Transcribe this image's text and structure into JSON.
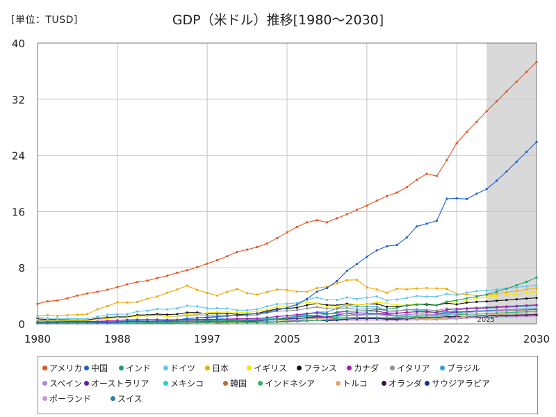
{
  "header": {
    "unit_label": "[単位：TUSD]",
    "title": "GDP（米ドル）推移[1980～2030]"
  },
  "chart_data": {
    "type": "line",
    "title": "GDP（米ドル）推移[1980～2030]",
    "unit": "[単位：TUSD]",
    "xlim": [
      1980,
      2030
    ],
    "ylim": [
      0,
      40
    ],
    "x_ticks": [
      1980,
      1988,
      1997,
      2005,
      2013,
      2022,
      2030
    ],
    "y_ticks": [
      0,
      8,
      16,
      24,
      32,
      40
    ],
    "grid": true,
    "forecast_start": 2025,
    "forecast_label": "2025",
    "legend_position": "bottom",
    "x": [
      1980,
      1981,
      1982,
      1983,
      1984,
      1985,
      1986,
      1987,
      1988,
      1989,
      1990,
      1991,
      1992,
      1993,
      1994,
      1995,
      1996,
      1997,
      1998,
      1999,
      2000,
      2001,
      2002,
      2003,
      2004,
      2005,
      2006,
      2007,
      2008,
      2009,
      2010,
      2011,
      2012,
      2013,
      2014,
      2015,
      2016,
      2017,
      2018,
      2019,
      2020,
      2021,
      2022,
      2023,
      2024,
      2025,
      2026,
      2027,
      2028,
      2029,
      2030
    ],
    "series": [
      {
        "name": "アメリカ",
        "color": "#e8521c",
        "values": [
          2.86,
          3.21,
          3.34,
          3.64,
          4.04,
          4.34,
          4.58,
          4.86,
          5.24,
          5.64,
          5.96,
          6.16,
          6.52,
          6.86,
          7.29,
          7.64,
          8.07,
          8.58,
          9.06,
          9.63,
          10.25,
          10.58,
          10.94,
          11.46,
          12.21,
          13.04,
          13.82,
          14.47,
          14.77,
          14.48,
          15.05,
          15.6,
          16.25,
          16.84,
          17.55,
          18.21,
          18.7,
          19.48,
          20.53,
          21.38,
          21.06,
          23.32,
          25.74,
          27.36,
          28.78,
          30.3,
          31.7,
          33.1,
          34.5,
          35.9,
          37.3
        ]
      },
      {
        "name": "中国",
        "color": "#1a5fd6",
        "values": [
          0.3,
          0.29,
          0.28,
          0.3,
          0.31,
          0.31,
          0.3,
          0.27,
          0.31,
          0.35,
          0.36,
          0.38,
          0.43,
          0.44,
          0.56,
          0.73,
          0.86,
          0.96,
          1.03,
          1.09,
          1.21,
          1.34,
          1.47,
          1.66,
          1.95,
          2.29,
          2.75,
          3.55,
          4.59,
          5.1,
          6.09,
          7.55,
          8.53,
          9.57,
          10.48,
          11.06,
          11.23,
          12.31,
          13.89,
          14.28,
          14.69,
          17.82,
          17.88,
          17.79,
          18.53,
          19.2,
          20.4,
          21.7,
          23.1,
          24.5,
          25.9
        ]
      },
      {
        "name": "インド",
        "color": "#1b9e6b",
        "values": [
          0.19,
          0.2,
          0.2,
          0.22,
          0.21,
          0.23,
          0.25,
          0.27,
          0.29,
          0.29,
          0.32,
          0.27,
          0.29,
          0.28,
          0.33,
          0.36,
          0.39,
          0.42,
          0.42,
          0.46,
          0.47,
          0.49,
          0.51,
          0.6,
          0.7,
          0.82,
          0.94,
          1.22,
          1.2,
          1.34,
          1.68,
          1.82,
          1.83,
          1.86,
          2.04,
          2.1,
          2.29,
          2.65,
          2.7,
          2.84,
          2.67,
          3.15,
          3.35,
          3.64,
          3.89,
          4.19,
          4.6,
          5.0,
          5.5,
          6.0,
          6.6
        ]
      },
      {
        "name": "ドイツ",
        "color": "#5ec4f0",
        "values": [
          0.95,
          0.8,
          0.77,
          0.77,
          0.72,
          0.73,
          1.04,
          1.3,
          1.4,
          1.39,
          1.77,
          1.87,
          2.12,
          2.07,
          2.21,
          2.59,
          2.5,
          2.22,
          2.24,
          2.2,
          1.95,
          1.95,
          2.08,
          2.5,
          2.82,
          2.86,
          3.0,
          3.44,
          3.75,
          3.42,
          3.42,
          3.76,
          3.54,
          3.75,
          3.9,
          3.36,
          3.47,
          3.69,
          3.98,
          3.89,
          3.89,
          4.28,
          4.08,
          4.46,
          4.66,
          4.75,
          4.9,
          5.05,
          5.2,
          5.35,
          5.5
        ]
      },
      {
        "name": "日本",
        "color": "#f0a800",
        "values": [
          1.13,
          1.24,
          1.14,
          1.25,
          1.31,
          1.4,
          2.08,
          2.53,
          3.07,
          3.05,
          3.13,
          3.58,
          3.9,
          4.45,
          4.9,
          5.45,
          4.83,
          4.41,
          4.03,
          4.56,
          4.97,
          4.37,
          4.18,
          4.52,
          4.89,
          4.83,
          4.6,
          4.58,
          5.1,
          5.29,
          5.76,
          6.23,
          6.27,
          5.21,
          4.9,
          4.44,
          5.0,
          4.93,
          5.04,
          5.12,
          5.05,
          5.0,
          4.26,
          4.21,
          4.03,
          4.1,
          4.3,
          4.5,
          4.7,
          4.9,
          5.1
        ]
      },
      {
        "name": "イギリス",
        "color": "#f4e800",
        "values": [
          0.56,
          0.54,
          0.51,
          0.49,
          0.46,
          0.49,
          0.6,
          0.74,
          0.89,
          0.9,
          1.09,
          1.14,
          1.18,
          1.06,
          1.14,
          1.34,
          1.42,
          1.56,
          1.65,
          1.68,
          1.66,
          1.64,
          1.78,
          2.05,
          2.42,
          2.54,
          2.71,
          3.09,
          2.92,
          2.41,
          2.49,
          2.66,
          2.71,
          2.79,
          3.06,
          2.93,
          2.69,
          2.68,
          2.87,
          2.85,
          2.7,
          3.13,
          3.08,
          3.34,
          3.64,
          3.8,
          3.95,
          4.1,
          4.25,
          4.4,
          4.55
        ]
      },
      {
        "name": "フランス",
        "color": "#111111",
        "values": [
          0.7,
          0.62,
          0.6,
          0.57,
          0.54,
          0.56,
          0.77,
          0.92,
          1.0,
          1.0,
          1.27,
          1.27,
          1.4,
          1.32,
          1.39,
          1.6,
          1.61,
          1.46,
          1.51,
          1.49,
          1.36,
          1.38,
          1.49,
          1.84,
          2.12,
          2.2,
          2.32,
          2.66,
          2.92,
          2.69,
          2.64,
          2.86,
          2.68,
          2.81,
          2.85,
          2.44,
          2.47,
          2.59,
          2.79,
          2.73,
          2.65,
          2.96,
          2.78,
          3.03,
          3.13,
          3.2,
          3.3,
          3.4,
          3.5,
          3.6,
          3.7
        ]
      },
      {
        "name": "カナダ",
        "color": "#a21caf",
        "values": [
          0.27,
          0.3,
          0.31,
          0.34,
          0.35,
          0.36,
          0.37,
          0.43,
          0.51,
          0.57,
          0.6,
          0.61,
          0.59,
          0.58,
          0.58,
          0.6,
          0.63,
          0.65,
          0.63,
          0.68,
          0.74,
          0.74,
          0.76,
          0.9,
          1.03,
          1.17,
          1.32,
          1.47,
          1.55,
          1.37,
          1.61,
          1.79,
          1.83,
          1.85,
          1.81,
          1.56,
          1.53,
          1.65,
          1.72,
          1.74,
          1.65,
          2.0,
          2.16,
          2.14,
          2.21,
          2.3,
          2.38,
          2.46,
          2.54,
          2.62,
          2.7
        ]
      },
      {
        "name": "イタリア",
        "color": "#8a9099",
        "values": [
          0.48,
          0.43,
          0.43,
          0.44,
          0.44,
          0.45,
          0.63,
          0.78,
          0.86,
          0.89,
          1.18,
          1.24,
          1.32,
          1.06,
          1.1,
          1.17,
          1.31,
          1.24,
          1.27,
          1.25,
          1.14,
          1.17,
          1.28,
          1.57,
          1.8,
          1.86,
          1.95,
          2.21,
          2.4,
          2.19,
          2.13,
          2.29,
          2.09,
          2.14,
          2.16,
          1.84,
          1.88,
          1.96,
          2.09,
          2.01,
          1.9,
          2.18,
          2.07,
          2.26,
          2.33,
          2.4,
          2.46,
          2.52,
          2.58,
          2.64,
          2.7
        ]
      },
      {
        "name": "ブラジル",
        "color": "#2f9ee0",
        "values": [
          0.24,
          0.27,
          0.28,
          0.2,
          0.2,
          0.22,
          0.27,
          0.3,
          0.33,
          0.45,
          0.46,
          0.41,
          0.39,
          0.44,
          0.56,
          0.77,
          0.85,
          0.88,
          0.86,
          0.6,
          0.66,
          0.56,
          0.51,
          0.56,
          0.67,
          0.89,
          1.11,
          1.4,
          1.7,
          1.67,
          2.21,
          2.62,
          2.47,
          2.47,
          2.46,
          1.8,
          1.8,
          2.06,
          1.92,
          1.87,
          1.48,
          1.67,
          1.95,
          2.17,
          2.19,
          2.25,
          2.32,
          2.39,
          2.46,
          2.53,
          2.6
        ]
      },
      {
        "name": "スペイン",
        "color": "#a78bdb",
        "values": [
          0.23,
          0.2,
          0.2,
          0.17,
          0.17,
          0.18,
          0.25,
          0.32,
          0.38,
          0.42,
          0.54,
          0.58,
          0.63,
          0.52,
          0.53,
          0.61,
          0.64,
          0.59,
          0.62,
          0.63,
          0.6,
          0.63,
          0.71,
          0.9,
          1.07,
          1.16,
          1.26,
          1.48,
          1.64,
          1.5,
          1.43,
          1.49,
          1.34,
          1.37,
          1.38,
          1.2,
          1.23,
          1.32,
          1.43,
          1.4,
          1.28,
          1.45,
          1.42,
          1.58,
          1.73,
          1.8,
          1.87,
          1.94,
          2.01,
          2.08,
          2.15
        ]
      },
      {
        "name": "オーストラリア",
        "color": "#5b21b6",
        "values": [
          0.16,
          0.18,
          0.19,
          0.18,
          0.2,
          0.18,
          0.18,
          0.19,
          0.24,
          0.3,
          0.32,
          0.33,
          0.33,
          0.31,
          0.35,
          0.38,
          0.42,
          0.44,
          0.39,
          0.41,
          0.42,
          0.38,
          0.41,
          0.51,
          0.64,
          0.71,
          0.76,
          0.9,
          1.07,
          0.98,
          1.25,
          1.52,
          1.58,
          1.52,
          1.47,
          1.35,
          1.21,
          1.33,
          1.43,
          1.39,
          1.33,
          1.55,
          1.69,
          1.72,
          1.8,
          1.85,
          1.9,
          1.95,
          2.0,
          2.05,
          2.1
        ]
      },
      {
        "name": "メキシコ",
        "color": "#1fd1c4",
        "values": [
          0.21,
          0.26,
          0.18,
          0.16,
          0.18,
          0.19,
          0.13,
          0.14,
          0.18,
          0.22,
          0.26,
          0.31,
          0.36,
          0.5,
          0.53,
          0.36,
          0.41,
          0.5,
          0.53,
          0.6,
          0.71,
          0.76,
          0.77,
          0.73,
          0.78,
          0.88,
          0.99,
          1.05,
          1.11,
          0.9,
          1.06,
          1.18,
          1.2,
          1.27,
          1.32,
          1.17,
          1.08,
          1.16,
          1.22,
          1.27,
          1.12,
          1.31,
          1.47,
          1.79,
          1.85,
          1.9,
          1.96,
          2.02,
          2.08,
          2.14,
          2.2
        ]
      },
      {
        "name": "韓国",
        "color": "#b86b3a",
        "values": [
          0.07,
          0.07,
          0.08,
          0.09,
          0.1,
          0.1,
          0.12,
          0.15,
          0.2,
          0.25,
          0.28,
          0.33,
          0.35,
          0.39,
          0.46,
          0.57,
          0.61,
          0.57,
          0.38,
          0.49,
          0.58,
          0.55,
          0.63,
          0.7,
          0.79,
          0.93,
          1.05,
          1.17,
          1.05,
          0.94,
          1.14,
          1.25,
          1.28,
          1.37,
          1.48,
          1.47,
          1.5,
          1.62,
          1.72,
          1.65,
          1.64,
          1.82,
          1.67,
          1.71,
          1.76,
          1.8,
          1.85,
          1.9,
          1.95,
          2.0,
          2.05
        ]
      },
      {
        "name": "インドネシア",
        "color": "#33b56a",
        "values": [
          0.1,
          0.11,
          0.1,
          0.09,
          0.09,
          0.09,
          0.08,
          0.08,
          0.09,
          0.1,
          0.11,
          0.13,
          0.14,
          0.16,
          0.18,
          0.2,
          0.23,
          0.22,
          0.1,
          0.15,
          0.17,
          0.16,
          0.2,
          0.24,
          0.26,
          0.29,
          0.36,
          0.43,
          0.51,
          0.54,
          0.76,
          0.89,
          0.92,
          0.91,
          0.89,
          0.86,
          0.93,
          1.02,
          1.04,
          1.12,
          1.06,
          1.19,
          1.32,
          1.37,
          1.4,
          1.45,
          1.52,
          1.59,
          1.66,
          1.73,
          1.8
        ]
      },
      {
        "name": "トルコ",
        "color": "#e8a070",
        "values": [
          0.07,
          0.07,
          0.06,
          0.06,
          0.06,
          0.07,
          0.07,
          0.09,
          0.09,
          0.11,
          0.15,
          0.15,
          0.16,
          0.18,
          0.13,
          0.17,
          0.18,
          0.19,
          0.27,
          0.25,
          0.27,
          0.2,
          0.24,
          0.31,
          0.4,
          0.5,
          0.55,
          0.68,
          0.77,
          0.65,
          0.78,
          0.84,
          0.88,
          0.95,
          0.93,
          0.86,
          0.87,
          0.86,
          0.78,
          0.76,
          0.72,
          0.82,
          0.91,
          1.13,
          1.2,
          1.26,
          1.32,
          1.38,
          1.44,
          1.5,
          1.56
        ]
      },
      {
        "name": "オランダ",
        "color": "#3b0a45",
        "values": [
          0.19,
          0.16,
          0.16,
          0.15,
          0.14,
          0.14,
          0.19,
          0.23,
          0.25,
          0.25,
          0.31,
          0.32,
          0.35,
          0.34,
          0.36,
          0.42,
          0.42,
          0.39,
          0.41,
          0.42,
          0.41,
          0.43,
          0.46,
          0.57,
          0.65,
          0.68,
          0.73,
          0.84,
          0.94,
          0.86,
          0.84,
          0.89,
          0.83,
          0.87,
          0.88,
          0.76,
          0.78,
          0.83,
          0.91,
          0.91,
          0.91,
          1.03,
          1.01,
          1.12,
          1.15,
          1.18,
          1.21,
          1.24,
          1.27,
          1.3,
          1.33
        ]
      },
      {
        "name": "サウジアラビア",
        "color": "#1e2d8f",
        "values": [
          0.16,
          0.18,
          0.15,
          0.13,
          0.12,
          0.1,
          0.09,
          0.09,
          0.09,
          0.1,
          0.12,
          0.13,
          0.14,
          0.13,
          0.14,
          0.14,
          0.16,
          0.17,
          0.15,
          0.16,
          0.19,
          0.18,
          0.19,
          0.21,
          0.26,
          0.33,
          0.38,
          0.42,
          0.52,
          0.43,
          0.53,
          0.67,
          0.74,
          0.75,
          0.76,
          0.65,
          0.64,
          0.69,
          0.79,
          0.8,
          0.7,
          0.87,
          1.11,
          1.07,
          1.1,
          1.13,
          1.16,
          1.19,
          1.22,
          1.25,
          1.28
        ]
      },
      {
        "name": "ポーランド",
        "color": "#c996d9",
        "values": [
          0.06,
          0.06,
          0.06,
          0.07,
          0.07,
          0.07,
          0.07,
          0.07,
          0.07,
          0.08,
          0.07,
          0.09,
          0.09,
          0.09,
          0.1,
          0.14,
          0.16,
          0.16,
          0.17,
          0.17,
          0.17,
          0.19,
          0.2,
          0.22,
          0.25,
          0.31,
          0.34,
          0.43,
          0.53,
          0.44,
          0.48,
          0.52,
          0.5,
          0.52,
          0.54,
          0.48,
          0.47,
          0.53,
          0.59,
          0.6,
          0.6,
          0.68,
          0.69,
          0.81,
          0.86,
          0.9,
          0.94,
          0.98,
          1.02,
          1.06,
          1.1
        ]
      },
      {
        "name": "スイス",
        "color": "#2a7fb0",
        "values": [
          0.12,
          0.11,
          0.11,
          0.11,
          0.1,
          0.1,
          0.15,
          0.19,
          0.2,
          0.2,
          0.26,
          0.27,
          0.27,
          0.26,
          0.29,
          0.34,
          0.33,
          0.29,
          0.3,
          0.29,
          0.28,
          0.28,
          0.3,
          0.35,
          0.39,
          0.41,
          0.43,
          0.48,
          0.55,
          0.54,
          0.6,
          0.71,
          0.69,
          0.71,
          0.73,
          0.7,
          0.69,
          0.7,
          0.73,
          0.72,
          0.74,
          0.81,
          0.82,
          0.88,
          0.93,
          0.96,
          0.99,
          1.02,
          1.05,
          1.08,
          1.11
        ]
      }
    ]
  }
}
